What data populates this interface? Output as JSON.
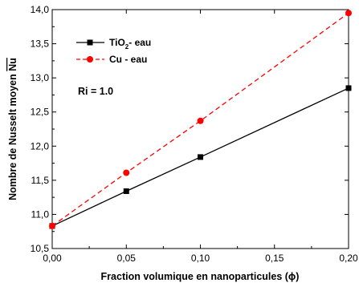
{
  "chart_data": {
    "type": "line",
    "xlabel": "Fraction volumique en nanoparticules (ϕ)",
    "ylabel": "Nombre de Nusselt moyen ",
    "ylabel_symbol": "Nu",
    "xlim": [
      0.0,
      0.2
    ],
    "ylim": [
      10.5,
      14.0
    ],
    "x_ticks": [
      0.0,
      0.05,
      0.1,
      0.15,
      0.2
    ],
    "x_tick_labels": [
      "0,00",
      "0,05",
      "0,10",
      "0,15",
      "0,20"
    ],
    "y_ticks": [
      10.5,
      11.0,
      11.5,
      12.0,
      12.5,
      13.0,
      13.5,
      14.0
    ],
    "y_tick_labels": [
      "10,5",
      "11,0",
      "11,5",
      "12,0",
      "12,5",
      "13,0",
      "13,5",
      "14,0"
    ],
    "grid": false,
    "legend_position": "top-left",
    "annotation": "Ri = 1.0",
    "series": [
      {
        "name": "TiO",
        "name_sub": "2",
        "name_suffix": "- eau",
        "x": [
          0.0,
          0.05,
          0.1,
          0.2
        ],
        "y": [
          10.83,
          11.34,
          11.84,
          12.85
        ],
        "color": "#000000",
        "line_style": "solid",
        "marker": "square"
      },
      {
        "name": "Cu - eau",
        "x": [
          0.0,
          0.05,
          0.1,
          0.2
        ],
        "y": [
          10.83,
          11.61,
          12.37,
          13.95
        ],
        "color": "#ff0000",
        "line_style": "dashed",
        "marker": "circle"
      }
    ]
  }
}
